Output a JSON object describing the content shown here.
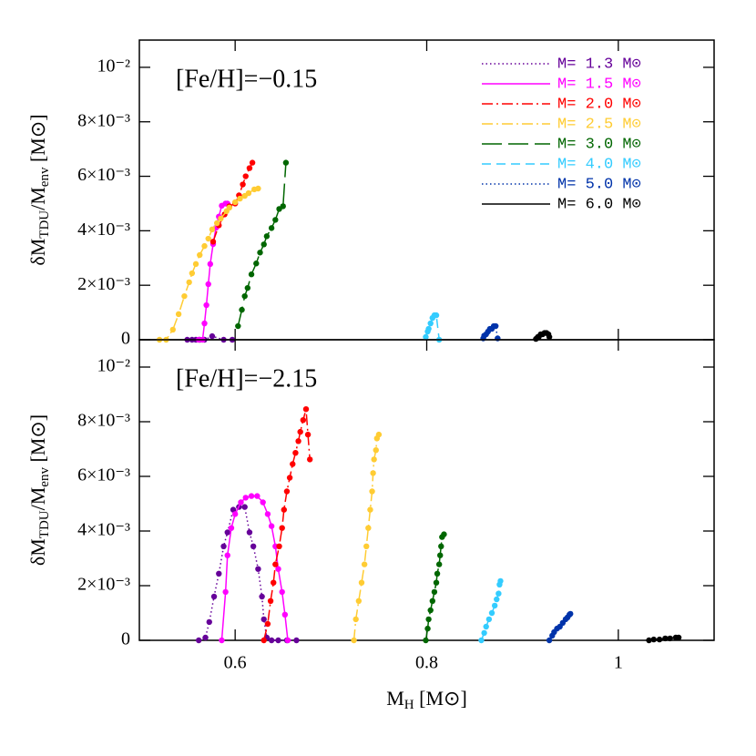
{
  "chart_data": [
    {
      "type": "line",
      "annotation": "[Fe/H]=−0.15",
      "ylabel": [
        "δM",
        "TDU",
        "/M",
        "env",
        " [M⊙]"
      ],
      "xlim": [
        0.5,
        1.1
      ],
      "xticks": [
        0.6,
        0.8,
        1
      ],
      "xtick_labels": false,
      "ylim": [
        0,
        0.011
      ],
      "yticks": [
        0,
        {
          "value": 0.002,
          "label": "2×10⁻³"
        },
        {
          "value": 0.004,
          "label": "4×10⁻³"
        },
        {
          "value": 0.006,
          "label": "6×10⁻³"
        },
        {
          "value": 0.008,
          "label": "8×10⁻³"
        },
        {
          "value": 0.01,
          "label": "10⁻²"
        }
      ],
      "legend": "upper right",
      "series": [
        {
          "name": "M= 1.3 M⊙",
          "color": "#660099",
          "linestyle": "dotted",
          "x": [
            0.55,
            0.555,
            0.559,
            0.563,
            0.568,
            0.576,
            0.588,
            0.597
          ],
          "values": [
            0,
            0,
            0,
            0,
            0,
            0.00013,
            0,
            0
          ]
        },
        {
          "name": "M= 1.5 M⊙",
          "color": "#ff00ff",
          "linestyle": "solid",
          "x": [
            0.562,
            0.566,
            0.568,
            0.57,
            0.572,
            0.574,
            0.577,
            0.58,
            0.583,
            0.586,
            0.59,
            0.592
          ],
          "values": [
            0,
            0,
            0.0006,
            0.00127,
            0.00204,
            0.00278,
            0.00351,
            0.00411,
            0.00452,
            0.00492,
            0.005,
            0.005
          ]
        },
        {
          "name": "M= 2.0 M⊙",
          "color": "#ff0000",
          "linestyle": "dashdot",
          "x": [
            0.577,
            0.583,
            0.589,
            0.594,
            0.6,
            0.604,
            0.608,
            0.611,
            0.615,
            0.618
          ],
          "values": [
            0.0036,
            0.0042,
            0.0046,
            0.0049,
            0.005,
            0.0053,
            0.0057,
            0.006,
            0.0063,
            0.0065
          ]
        },
        {
          "name": "M= 2.5 M⊙",
          "color": "#ffcc33",
          "linestyle": "dashdot",
          "x": [
            0.521,
            0.528,
            0.535,
            0.541,
            0.547,
            0.552,
            0.555,
            0.559,
            0.563,
            0.568,
            0.572,
            0.576,
            0.581,
            0.585,
            0.591,
            0.594,
            0.6,
            0.605,
            0.61,
            0.614,
            0.62,
            0.624
          ],
          "values": [
            0,
            0,
            0.00037,
            0.00094,
            0.0016,
            0.00211,
            0.00244,
            0.00278,
            0.00311,
            0.00344,
            0.00371,
            0.00405,
            0.00428,
            0.00445,
            0.00472,
            0.00485,
            0.00505,
            0.00518,
            0.00528,
            0.00538,
            0.00552,
            0.00555
          ]
        },
        {
          "name": "M= 3.0 M⊙",
          "color": "#006600",
          "linestyle": "longdash",
          "x": [
            0.603,
            0.607,
            0.61,
            0.613,
            0.617,
            0.622,
            0.626,
            0.63,
            0.633,
            0.638,
            0.642,
            0.646,
            0.65,
            0.653
          ],
          "values": [
            0.0005,
            0.0011,
            0.0016,
            0.0019,
            0.0024,
            0.0028,
            0.0032,
            0.0035,
            0.0038,
            0.0041,
            0.0044,
            0.0048,
            0.0049,
            0.0065
          ]
        },
        {
          "name": "M= 4.0 M⊙",
          "color": "#33ccff",
          "linestyle": "dashed",
          "x": [
            0.799,
            0.801,
            0.802,
            0.804,
            0.806,
            0.808,
            0.81,
            0.813
          ],
          "values": [
            0.0001,
            0.0003,
            0.0004,
            0.0006,
            0.0008,
            0.0009,
            0.0009,
            0
          ]
        },
        {
          "name": "M= 5.0 M⊙",
          "color": "#0033aa",
          "linestyle": "dotted",
          "x": [
            0.859,
            0.86,
            0.862,
            0.864,
            0.866,
            0.868,
            0.87,
            0.872,
            0.874
          ],
          "values": [
            5e-05,
            0.00015,
            0.0002,
            0.0003,
            0.0004,
            0.0004,
            0.0005,
            0.0005,
            5e-05
          ]
        },
        {
          "name": "M= 6.0 M⊙",
          "color": "#000000",
          "linestyle": "solid",
          "x": [
            0.914,
            0.916,
            0.917,
            0.919,
            0.921,
            0.923,
            0.925,
            0.927,
            0.928
          ],
          "values": [
            3e-05,
            0.0001,
            0.0001,
            0.0002,
            0.0002,
            0.00025,
            0.00025,
            0.0002,
            0.0001
          ]
        }
      ]
    },
    {
      "type": "line",
      "annotation": "[Fe/H]=−2.15",
      "ylabel": [
        "δM",
        "TDU",
        "/M",
        "env",
        " [M⊙]"
      ],
      "xlabel": [
        "M",
        "H",
        " [M⊙]"
      ],
      "xlim": [
        0.5,
        1.1
      ],
      "xticks": [
        0.6,
        0.8,
        1
      ],
      "xtick_labels": true,
      "ylim": [
        0,
        0.011
      ],
      "yticks": [
        0,
        {
          "value": 0.002,
          "label": "2×10⁻³"
        },
        {
          "value": 0.004,
          "label": "4×10⁻³"
        },
        {
          "value": 0.006,
          "label": "6×10⁻³"
        },
        {
          "value": 0.008,
          "label": "8×10⁻³"
        },
        {
          "value": 0.01,
          "label": "10⁻²"
        }
      ],
      "series": [
        {
          "color": "#660099",
          "linestyle": "dotted",
          "x": [
            0.562,
            0.569,
            0.573,
            0.578,
            0.583,
            0.588,
            0.592,
            0.598,
            0.604,
            0.61,
            0.615,
            0.619,
            0.624,
            0.628,
            0.63,
            0.633,
            0.638,
            0.645,
            0.654,
            0.664
          ],
          "values": [
            0,
            0.0001,
            0.00067,
            0.0016,
            0.00244,
            0.00344,
            0.00395,
            0.00478,
            0.00488,
            0.00488,
            0.00395,
            0.00344,
            0.00261,
            0.0016,
            0.00077,
            0.0001,
            0,
            0,
            0,
            0
          ]
        },
        {
          "color": "#ff00ff",
          "linestyle": "solid",
          "x": [
            0.586,
            0.59,
            0.592,
            0.596,
            0.6,
            0.606,
            0.611,
            0.617,
            0.623,
            0.629,
            0.634,
            0.638,
            0.642,
            0.645,
            0.649,
            0.652,
            0.655
          ],
          "values": [
            0,
            0.00177,
            0.00311,
            0.00411,
            0.00462,
            0.00505,
            0.00522,
            0.00528,
            0.00528,
            0.00505,
            0.00462,
            0.00418,
            0.00344,
            0.00261,
            0.00177,
            0.00094,
            0
          ]
        },
        {
          "color": "#ff0000",
          "linestyle": "dashdot",
          "x": [
            0.63,
            0.634,
            0.637,
            0.64,
            0.642,
            0.646,
            0.649,
            0.651,
            0.654,
            0.657,
            0.66,
            0.663,
            0.666,
            0.668,
            0.671,
            0.674,
            0.676,
            0.678
          ],
          "values": [
            0,
            0.0006,
            0.00144,
            0.00211,
            0.00278,
            0.00344,
            0.00411,
            0.00478,
            0.00545,
            0.00595,
            0.00645,
            0.00686,
            0.00729,
            0.00763,
            0.00806,
            0.00846,
            0.00753,
            0.00662
          ]
        },
        {
          "color": "#ffcc33",
          "linestyle": "dashdot",
          "x": [
            0.724,
            0.726,
            0.729,
            0.732,
            0.735,
            0.737,
            0.739,
            0.741,
            0.743,
            0.744,
            0.745,
            0.747,
            0.748,
            0.75
          ],
          "values": [
            0,
            0.00077,
            0.00144,
            0.00211,
            0.00278,
            0.00344,
            0.00411,
            0.00478,
            0.00545,
            0.00612,
            0.00662,
            0.00696,
            0.00739,
            0.00753
          ]
        },
        {
          "color": "#006600",
          "linestyle": "longdash",
          "x": [
            0.799,
            0.801,
            0.802,
            0.804,
            0.806,
            0.808,
            0.81,
            0.811,
            0.813,
            0.814,
            0.815,
            0.816,
            0.818
          ],
          "values": [
            0,
            0.00043,
            0.00077,
            0.0011,
            0.00144,
            0.00177,
            0.00211,
            0.00244,
            0.00278,
            0.00311,
            0.00344,
            0.00378,
            0.00388
          ]
        },
        {
          "color": "#33ccff",
          "linestyle": "dashed",
          "x": [
            0.857,
            0.86,
            0.862,
            0.865,
            0.868,
            0.871,
            0.873,
            0.875,
            0.876,
            0.877
          ],
          "values": [
            0,
            0.00027,
            0.0005,
            0.00077,
            0.001,
            0.00127,
            0.0015,
            0.00171,
            0.00204,
            0.00217
          ]
        },
        {
          "color": "#0033aa",
          "linestyle": "dotted",
          "x": [
            0.928,
            0.931,
            0.933,
            0.936,
            0.939,
            0.942,
            0.945,
            0.947,
            0.949,
            0.95
          ],
          "values": [
            0,
            0.00017,
            0.0003,
            0.00043,
            0.0005,
            0.00064,
            0.00077,
            0.00084,
            0.00094,
            0.00097
          ]
        },
        {
          "color": "#000000",
          "linestyle": "solid",
          "x": [
            1.032,
            1.037,
            1.043,
            1.049,
            1.054,
            1.06,
            1.063
          ],
          "values": [
            0,
            3e-05,
            3e-05,
            7e-05,
            7e-05,
            0.0001,
            0.0001
          ]
        }
      ]
    }
  ]
}
